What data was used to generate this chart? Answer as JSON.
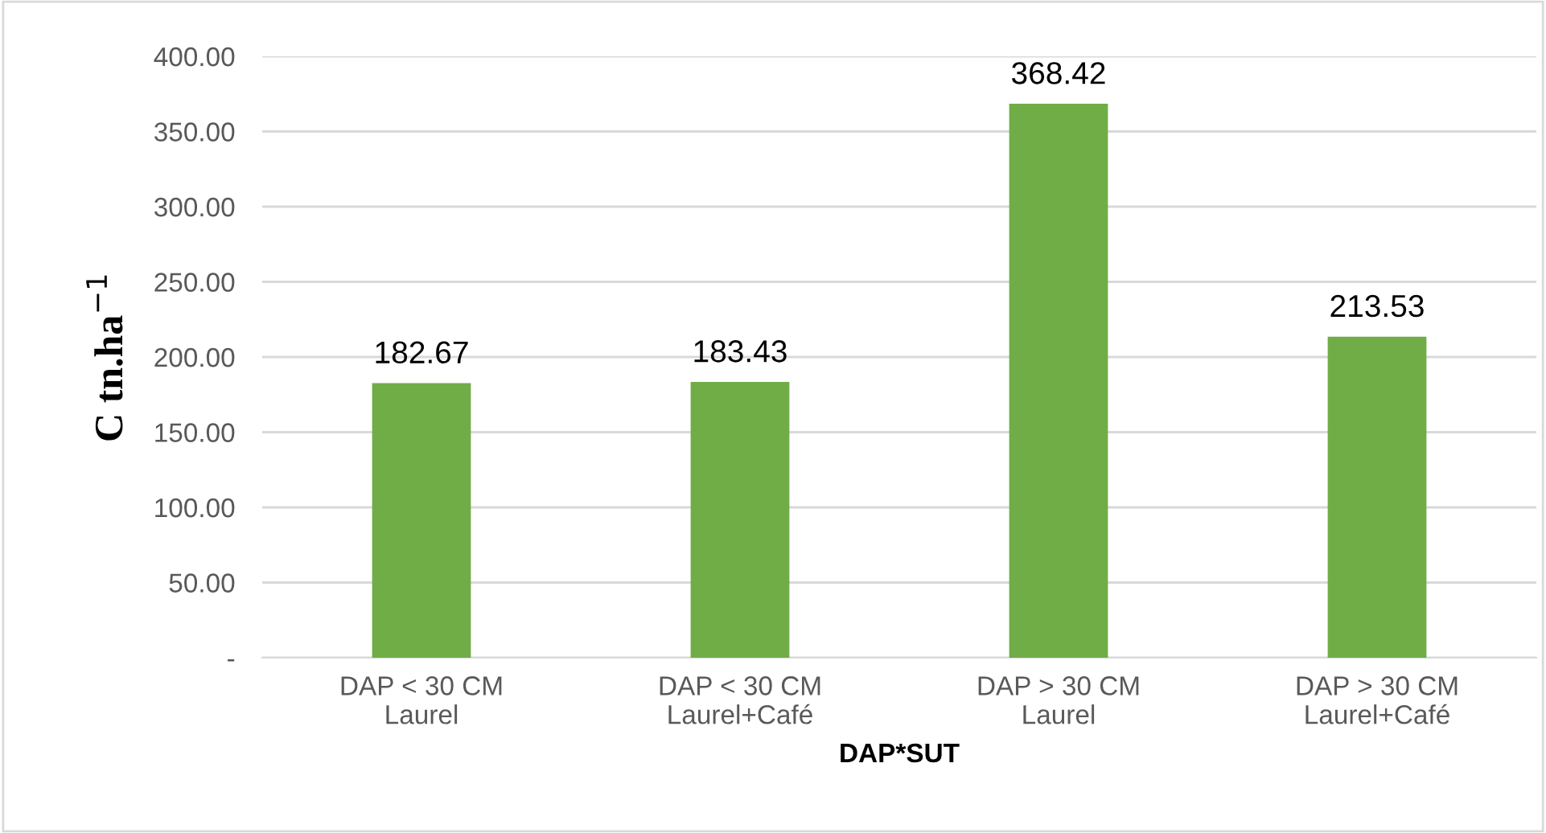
{
  "chart_data": {
    "type": "bar",
    "categories": [
      "DAP < 30 CM\nLaurel",
      "DAP < 30 CM\nLaurel+Café",
      "DAP > 30 CM\nLaurel",
      "DAP > 30 CM\nLaurel+Café"
    ],
    "values": [
      182.67,
      183.43,
      368.42,
      213.53
    ],
    "color": "#70ad47",
    "xlabel": "DAP*SUT",
    "ylabel": "C tn.ha$^{−1}$",
    "ylim": [
      0,
      400
    ],
    "yticks": [
      {
        "value": 0,
        "label": "-"
      },
      {
        "value": 50,
        "label": "50.00"
      },
      {
        "value": 100,
        "label": "100.00"
      },
      {
        "value": 150,
        "label": "150.00"
      },
      {
        "value": 200,
        "label": "200.00"
      },
      {
        "value": 250,
        "label": "250.00"
      },
      {
        "value": 300,
        "label": "300.00"
      },
      {
        "value": 350,
        "label": "350.00"
      },
      {
        "value": 400,
        "label": "400.00"
      }
    ],
    "grid": "y",
    "data_labels": true
  }
}
